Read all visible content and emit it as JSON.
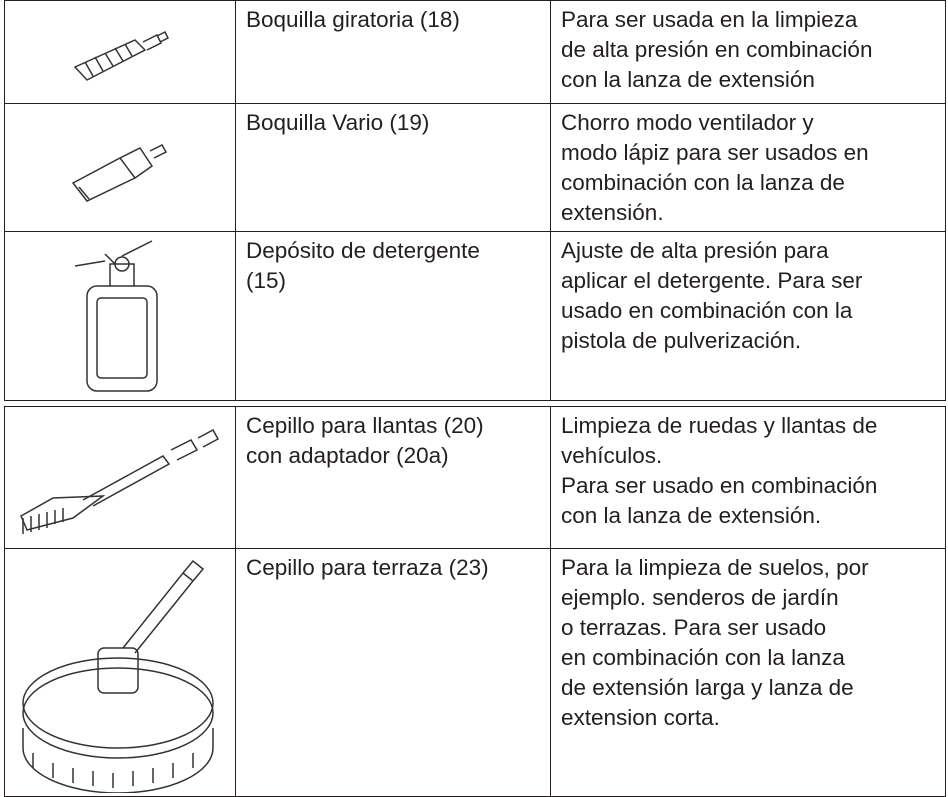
{
  "tables": [
    {
      "rows": [
        {
          "name": [
            "Boquilla giratoria (18)"
          ],
          "description": [
            "Para ser usada en la limpieza",
            "de alta presión en combinación",
            "con la lanza de extensión"
          ]
        },
        {
          "name": [
            "Boquilla Vario (19)"
          ],
          "description": [
            "Chorro modo ventilador y",
            "modo lápiz para ser usados en",
            "combinación con la lanza de",
            "extensión."
          ]
        },
        {
          "name": [
            "Depósito de detergente",
            "(15)"
          ],
          "description": [
            "Ajuste de alta presión para",
            "aplicar el detergente. Para ser",
            "usado en combinación con la",
            "pistola de pulverización."
          ]
        }
      ]
    },
    {
      "rows": [
        {
          "name": [
            "Cepillo para llantas (20)",
            "con adaptador (20a)"
          ],
          "description": [
            "Limpieza de ruedas y llantas de",
            "vehículos.",
            "Para ser usado en combinación",
            "con la lanza de extensión."
          ]
        },
        {
          "name": [
            "Cepillo para terraza (23)"
          ],
          "description": [
            "Para la limpieza de suelos, por",
            "ejemplo. senderos de jardín",
            "o terrazas. Para ser usado",
            "en combinación con la lanza",
            "de extensión larga y lanza de",
            "extension corta."
          ]
        }
      ]
    }
  ]
}
